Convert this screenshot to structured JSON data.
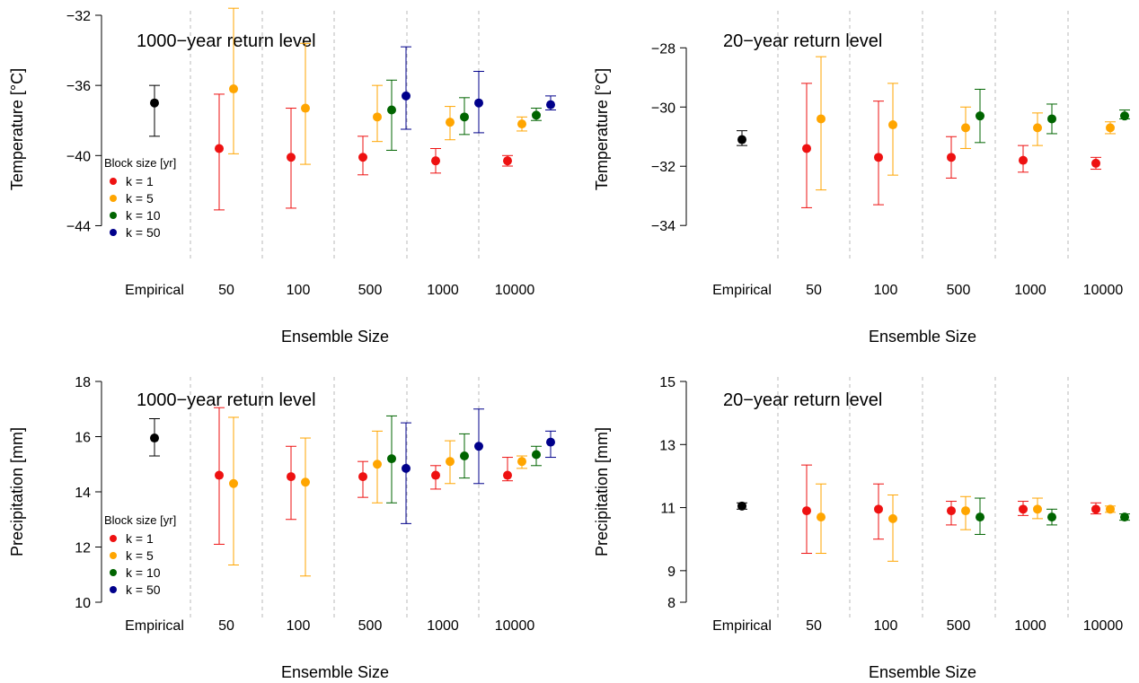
{
  "colors": {
    "Empirical": "#000000",
    "k = 1": "#ee1111",
    "k = 5": "#ffa500",
    "k = 10": "#006400",
    "k = 50": "#00008b"
  },
  "chart_data": [
    {
      "type": "scatter",
      "title": "1000−year return level",
      "xlabel": "Ensemble Size",
      "ylabel": "Temperature [°C]",
      "categories": [
        "Empirical",
        "50",
        "100",
        "500",
        "1000",
        "10000"
      ],
      "yticks": [
        -32,
        -36,
        -40,
        -44
      ],
      "ytick_labels": [
        "−32",
        "−36",
        "−40",
        "−44"
      ],
      "ylim": [
        -45,
        -32
      ],
      "legend": {
        "title": "Block size [yr]",
        "placement": "left",
        "entries": [
          "k = 1",
          "k = 5",
          "k = 10",
          "k = 50"
        ]
      },
      "series": [
        {
          "name": "Empirical",
          "points": [
            {
              "group": "Empirical",
              "value": -37.0,
              "lo": -38.9,
              "hi": -36.0
            }
          ]
        },
        {
          "name": "k = 1",
          "points": [
            {
              "group": "50",
              "value": -39.6,
              "lo": -43.1,
              "hi": -36.5
            },
            {
              "group": "100",
              "value": -40.1,
              "lo": -43.0,
              "hi": -37.3
            },
            {
              "group": "500",
              "value": -40.1,
              "lo": -41.1,
              "hi": -38.9
            },
            {
              "group": "1000",
              "value": -40.3,
              "lo": -41.0,
              "hi": -39.6
            },
            {
              "group": "10000",
              "value": -40.3,
              "lo": -40.6,
              "hi": -40.0
            }
          ]
        },
        {
          "name": "k = 5",
          "points": [
            {
              "group": "50",
              "value": -36.2,
              "lo": -39.9,
              "hi": -31.6
            },
            {
              "group": "100",
              "value": -37.3,
              "lo": -40.5,
              "hi": -33.6
            },
            {
              "group": "500",
              "value": -37.8,
              "lo": -39.2,
              "hi": -36.0
            },
            {
              "group": "1000",
              "value": -38.1,
              "lo": -39.1,
              "hi": -37.2
            },
            {
              "group": "10000",
              "value": -38.2,
              "lo": -38.6,
              "hi": -37.8
            }
          ]
        },
        {
          "name": "k = 10",
          "points": [
            {
              "group": "500",
              "value": -37.4,
              "lo": -39.7,
              "hi": -35.7
            },
            {
              "group": "1000",
              "value": -37.8,
              "lo": -38.8,
              "hi": -36.7
            },
            {
              "group": "10000",
              "value": -37.7,
              "lo": -38.0,
              "hi": -37.3
            }
          ]
        },
        {
          "name": "k = 50",
          "points": [
            {
              "group": "500",
              "value": -36.6,
              "lo": -38.5,
              "hi": -33.8
            },
            {
              "group": "1000",
              "value": -37.0,
              "lo": -38.7,
              "hi": -35.2
            },
            {
              "group": "10000",
              "value": -37.1,
              "lo": -37.4,
              "hi": -36.6
            }
          ]
        }
      ]
    },
    {
      "type": "scatter",
      "title": "20−year return level",
      "xlabel": "Ensemble Size",
      "ylabel": "Temperature [°C]",
      "categories": [
        "Empirical",
        "50",
        "100",
        "500",
        "1000",
        "10000"
      ],
      "yticks": [
        -28,
        -30,
        -32,
        -34
      ],
      "ytick_labels": [
        "−28",
        "−30",
        "−32",
        "−34"
      ],
      "ylim": [
        -34.6,
        -26.9
      ],
      "series": [
        {
          "name": "Empirical",
          "points": [
            {
              "group": "Empirical",
              "value": -31.1,
              "lo": -31.3,
              "hi": -30.8
            }
          ]
        },
        {
          "name": "k = 1",
          "points": [
            {
              "group": "50",
              "value": -31.4,
              "lo": -33.4,
              "hi": -29.2
            },
            {
              "group": "100",
              "value": -31.7,
              "lo": -33.3,
              "hi": -29.8
            },
            {
              "group": "500",
              "value": -31.7,
              "lo": -32.4,
              "hi": -31.0
            },
            {
              "group": "1000",
              "value": -31.8,
              "lo": -32.2,
              "hi": -31.3
            },
            {
              "group": "10000",
              "value": -31.9,
              "lo": -32.1,
              "hi": -31.7
            }
          ]
        },
        {
          "name": "k = 5",
          "points": [
            {
              "group": "50",
              "value": -30.4,
              "lo": -32.8,
              "hi": -28.3
            },
            {
              "group": "100",
              "value": -30.6,
              "lo": -32.3,
              "hi": -29.2
            },
            {
              "group": "500",
              "value": -30.7,
              "lo": -31.4,
              "hi": -30.0
            },
            {
              "group": "1000",
              "value": -30.7,
              "lo": -31.3,
              "hi": -30.2
            },
            {
              "group": "10000",
              "value": -30.7,
              "lo": -30.9,
              "hi": -30.5
            }
          ]
        },
        {
          "name": "k = 10",
          "points": [
            {
              "group": "500",
              "value": -30.3,
              "lo": -31.2,
              "hi": -29.4
            },
            {
              "group": "1000",
              "value": -30.4,
              "lo": -30.9,
              "hi": -29.9
            },
            {
              "group": "10000",
              "value": -30.3,
              "lo": -30.4,
              "hi": -30.1
            }
          ]
        }
      ]
    },
    {
      "type": "scatter",
      "title": "1000−year return level",
      "xlabel": "Ensemble Size",
      "ylabel": "Precipitation [mm]",
      "categories": [
        "Empirical",
        "50",
        "100",
        "500",
        "1000",
        "10000"
      ],
      "yticks": [
        10,
        12,
        14,
        16,
        18
      ],
      "ytick_labels": [
        "10",
        "12",
        "14",
        "16",
        "18"
      ],
      "ylim": [
        10,
        18
      ],
      "legend": {
        "title": "Block size [yr]",
        "placement": "left",
        "entries": [
          "k = 1",
          "k = 5",
          "k = 10",
          "k = 50"
        ]
      },
      "series": [
        {
          "name": "Empirical",
          "points": [
            {
              "group": "Empirical",
              "value": 15.95,
              "lo": 15.3,
              "hi": 16.65
            }
          ]
        },
        {
          "name": "k = 1",
          "points": [
            {
              "group": "50",
              "value": 14.6,
              "lo": 12.1,
              "hi": 17.05
            },
            {
              "group": "100",
              "value": 14.55,
              "lo": 13.0,
              "hi": 15.65
            },
            {
              "group": "500",
              "value": 14.55,
              "lo": 13.8,
              "hi": 15.1
            },
            {
              "group": "1000",
              "value": 14.6,
              "lo": 14.1,
              "hi": 14.95
            },
            {
              "group": "10000",
              "value": 14.6,
              "lo": 14.4,
              "hi": 15.25
            }
          ]
        },
        {
          "name": "k = 5",
          "points": [
            {
              "group": "50",
              "value": 14.3,
              "lo": 11.35,
              "hi": 16.7
            },
            {
              "group": "100",
              "value": 14.35,
              "lo": 10.95,
              "hi": 15.95
            },
            {
              "group": "500",
              "value": 15.0,
              "lo": 13.6,
              "hi": 16.2
            },
            {
              "group": "1000",
              "value": 15.1,
              "lo": 14.3,
              "hi": 15.85
            },
            {
              "group": "10000",
              "value": 15.1,
              "lo": 14.85,
              "hi": 15.3
            }
          ]
        },
        {
          "name": "k = 10",
          "points": [
            {
              "group": "500",
              "value": 15.2,
              "lo": 13.6,
              "hi": 16.75
            },
            {
              "group": "1000",
              "value": 15.3,
              "lo": 14.5,
              "hi": 16.1
            },
            {
              "group": "10000",
              "value": 15.35,
              "lo": 14.95,
              "hi": 15.65
            }
          ]
        },
        {
          "name": "k = 50",
          "points": [
            {
              "group": "500",
              "value": 14.85,
              "lo": 12.85,
              "hi": 16.5
            },
            {
              "group": "1000",
              "value": 15.65,
              "lo": 14.3,
              "hi": 17.0
            },
            {
              "group": "10000",
              "value": 15.8,
              "lo": 15.25,
              "hi": 16.2
            }
          ]
        }
      ]
    },
    {
      "type": "scatter",
      "title": "20−year return level",
      "xlabel": "Ensemble Size",
      "ylabel": "Precipitation [mm]",
      "categories": [
        "Empirical",
        "50",
        "100",
        "500",
        "1000",
        "10000"
      ],
      "yticks": [
        8,
        9,
        11,
        13,
        15
      ],
      "ytick_labels": [
        "8",
        "9",
        "11",
        "13",
        "15"
      ],
      "ylim": [
        8,
        15
      ],
      "series": [
        {
          "name": "Empirical",
          "points": [
            {
              "group": "Empirical",
              "value": 11.05,
              "lo": 10.95,
              "hi": 11.15
            }
          ]
        },
        {
          "name": "k = 1",
          "points": [
            {
              "group": "50",
              "value": 10.9,
              "lo": 9.55,
              "hi": 12.35
            },
            {
              "group": "100",
              "value": 10.95,
              "lo": 10.0,
              "hi": 11.75
            },
            {
              "group": "500",
              "value": 10.9,
              "lo": 10.45,
              "hi": 11.2
            },
            {
              "group": "1000",
              "value": 10.95,
              "lo": 10.75,
              "hi": 11.2
            },
            {
              "group": "10000",
              "value": 10.95,
              "lo": 10.8,
              "hi": 11.15
            }
          ]
        },
        {
          "name": "k = 5",
          "points": [
            {
              "group": "50",
              "value": 10.7,
              "lo": 9.55,
              "hi": 11.75
            },
            {
              "group": "100",
              "value": 10.65,
              "lo": 9.3,
              "hi": 11.4
            },
            {
              "group": "500",
              "value": 10.9,
              "lo": 10.3,
              "hi": 11.35
            },
            {
              "group": "1000",
              "value": 10.95,
              "lo": 10.65,
              "hi": 11.3
            },
            {
              "group": "10000",
              "value": 10.95,
              "lo": 10.85,
              "hi": 11.05
            }
          ]
        },
        {
          "name": "k = 10",
          "points": [
            {
              "group": "500",
              "value": 10.7,
              "lo": 10.15,
              "hi": 11.3
            },
            {
              "group": "1000",
              "value": 10.7,
              "lo": 10.45,
              "hi": 10.95
            },
            {
              "group": "10000",
              "value": 10.7,
              "lo": 10.6,
              "hi": 10.8
            }
          ]
        }
      ]
    }
  ]
}
